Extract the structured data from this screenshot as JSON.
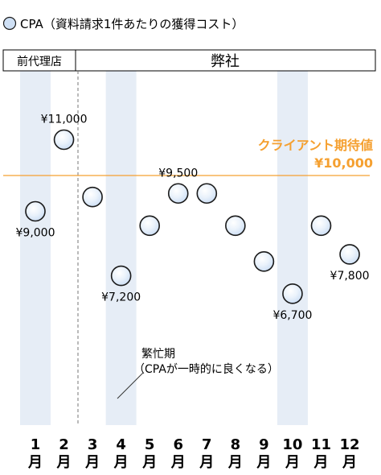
{
  "legend": {
    "label": "CPA（資料請求1件あたりの獲得コスト）"
  },
  "header": {
    "left": "前代理店",
    "right": "弊社"
  },
  "annotation": {
    "line1": "繁忙期",
    "line2": "（CPAが一時的に良くなる）"
  },
  "target": {
    "label": "クライアント期待値",
    "value_label": "¥10,000",
    "value": 10000,
    "color": "#f5a030"
  },
  "colors": {
    "marker_fill": "#cfe0f5",
    "marker_stroke": "#1a1a1a",
    "shade": "#e6edf6",
    "target_line": "#f5a030"
  },
  "chart_data": {
    "type": "scatter",
    "categories": [
      "1\n月",
      "2\n月",
      "3\n月",
      "4\n月",
      "5\n月",
      "6\n月",
      "7\n月",
      "8\n月",
      "9\n月",
      "10\n月",
      "11\n月",
      "12\n月"
    ],
    "series": [
      {
        "name": "CPA（資料請求1件あたりの獲得コスト）",
        "values": [
          9000,
          11000,
          9400,
          7200,
          8600,
          9500,
          9500,
          8600,
          7600,
          6700,
          8600,
          7800
        ]
      }
    ],
    "data_labels": [
      {
        "index": 0,
        "text": "¥9,000"
      },
      {
        "index": 1,
        "text": "¥11,000"
      },
      {
        "index": 3,
        "text": "¥7,200"
      },
      {
        "index": 5,
        "text": "¥9,500"
      },
      {
        "index": 9,
        "text": "¥6,700"
      },
      {
        "index": 11,
        "text": "¥7,800"
      }
    ],
    "shaded_months": [
      1,
      4,
      10
    ],
    "target_line": 10000,
    "divider_after_month": 2
  }
}
